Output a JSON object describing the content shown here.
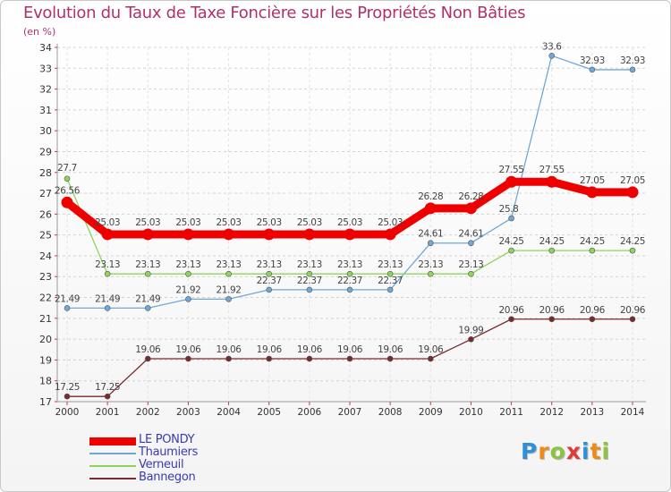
{
  "title": "Evolution du Taux de Taxe Foncière sur les Propriétés Non Bâties",
  "unit": "(en %)",
  "chart_data": {
    "type": "line",
    "title": "Evolution du Taux de Taxe Foncière sur les Propriétés Non Bâties",
    "ylabel": "(en %)",
    "xlabel": "",
    "x": [
      "2000",
      "2001",
      "2002",
      "2003",
      "2004",
      "2005",
      "2006",
      "2007",
      "2008",
      "2009",
      "2010",
      "2011",
      "2012",
      "2013",
      "2014"
    ],
    "ylim": [
      17,
      34
    ],
    "yticks": [
      17,
      18,
      19,
      20,
      21,
      22,
      23,
      24,
      25,
      26,
      27,
      28,
      29,
      30,
      31,
      32,
      33,
      34
    ],
    "legend_position": "bottom-left",
    "series": [
      {
        "name": "LE PONDY",
        "color": "#ee0000",
        "values": [
          26.56,
          25.03,
          25.03,
          25.03,
          25.03,
          25.03,
          25.03,
          25.03,
          25.03,
          26.28,
          26.28,
          27.55,
          27.55,
          27.05,
          27.05
        ],
        "labels": [
          "26.56",
          "25.03",
          "25.03",
          "25.03",
          "25.03",
          "25.03",
          "25.03",
          "25.03",
          "25.03",
          "26.28",
          "26.28",
          "27.55",
          "27.55",
          "27.05",
          "27.05"
        ]
      },
      {
        "name": "Thaumiers",
        "color": "#6fa8d8",
        "values": [
          21.49,
          21.49,
          21.49,
          21.92,
          21.92,
          22.37,
          22.37,
          22.37,
          22.37,
          24.61,
          24.61,
          25.8,
          33.6,
          32.93,
          32.93
        ],
        "labels": [
          "21.49",
          "21.49",
          "21.49",
          "21.92",
          "21.92",
          "22.37",
          "22.37",
          "22.37",
          "22.37",
          "24.61",
          "24.61",
          "25.8",
          "33.6",
          "32.93",
          "32.93"
        ]
      },
      {
        "name": "Verneuil",
        "color": "#8ed45a",
        "values": [
          27.7,
          23.13,
          23.13,
          23.13,
          23.13,
          23.13,
          23.13,
          23.13,
          23.13,
          23.13,
          23.13,
          24.25,
          24.25,
          24.25,
          24.25
        ],
        "labels": [
          "27.7",
          "23.13",
          "23.13",
          "23.13",
          "23.13",
          "23.13",
          "23.13",
          "23.13",
          "23.13",
          "23.13",
          "23.13",
          "24.25",
          "24.25",
          "24.25",
          "24.25"
        ]
      },
      {
        "name": "Bannegon",
        "color": "#7a2a2a",
        "values": [
          17.25,
          17.25,
          19.06,
          19.06,
          19.06,
          19.06,
          19.06,
          19.06,
          19.06,
          19.06,
          19.99,
          20.96,
          20.96,
          20.96,
          20.96
        ],
        "labels": [
          "17.25",
          "17.25",
          "19.06",
          "19.06",
          "19.06",
          "19.06",
          "19.06",
          "19.06",
          "19.06",
          "19.06",
          "19.99",
          "20.96",
          "20.96",
          "20.96",
          "20.96"
        ]
      }
    ]
  },
  "logo": {
    "letters": [
      "P",
      "r",
      "o",
      "x",
      "i",
      "t",
      "i"
    ],
    "colors": [
      "#2f8fd8",
      "#ef8a1a",
      "#8bc43f",
      "#e03a3a",
      "#2f8fd8",
      "#ef8a1a",
      "#8bc43f"
    ]
  }
}
